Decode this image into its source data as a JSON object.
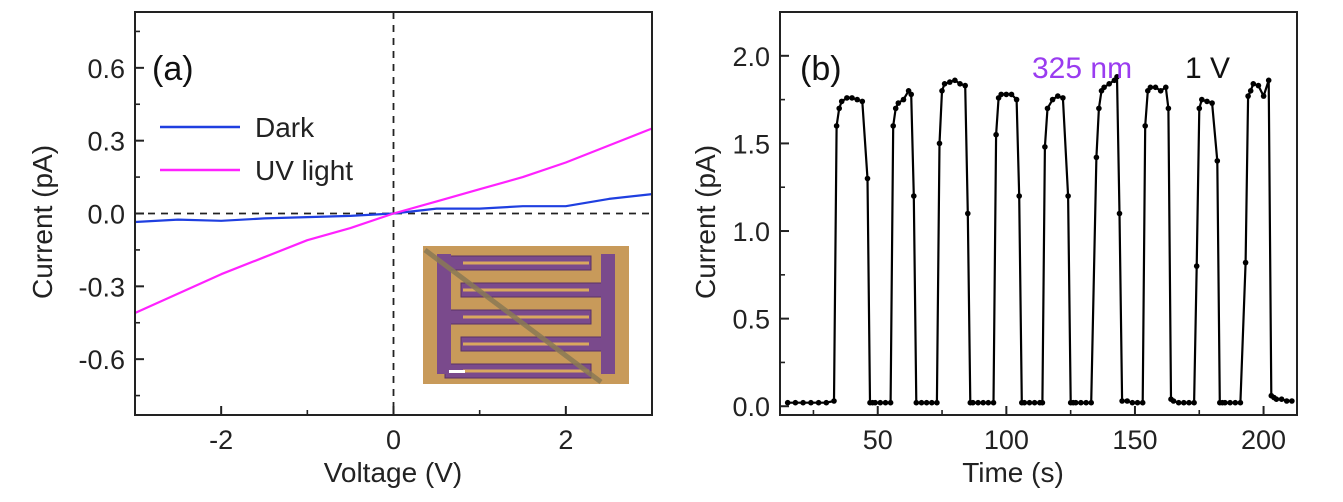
{
  "chart_data": [
    {
      "type": "line",
      "panel_label": "(a)",
      "xlabel": "Voltage (V)",
      "ylabel": "Current (pA)",
      "xlim": [
        -3,
        3
      ],
      "ylim": [
        -0.83,
        0.83
      ],
      "xticks": [
        -2,
        0,
        2
      ],
      "xtick_labels": [
        "-2",
        "0",
        "2"
      ],
      "yticks": [
        -0.6,
        -0.3,
        0.0,
        0.3,
        0.6
      ],
      "ytick_labels": [
        "-0.6",
        "-0.3",
        "0.0",
        "0.3",
        "0.6"
      ],
      "reference_lines": {
        "x": 0,
        "y": 0,
        "style": "dashed"
      },
      "legend": {
        "placement": "upper-left"
      },
      "grid": false,
      "inset": {
        "description_icon": "interdigitated-electrode-micrograph"
      },
      "series": [
        {
          "name": "Dark",
          "color": "#1f3fe0",
          "x": [
            -3,
            -2.5,
            -2,
            -1.5,
            -1,
            -0.5,
            0,
            0.5,
            1,
            1.5,
            2,
            2.5,
            3
          ],
          "y": [
            -0.035,
            -0.025,
            -0.03,
            -0.02,
            -0.015,
            -0.01,
            0.0,
            0.02,
            0.02,
            0.03,
            0.03,
            0.06,
            0.08
          ]
        },
        {
          "name": "UV light",
          "color": "#ff22ff",
          "x": [
            -3,
            -2.5,
            -2,
            -1.5,
            -1,
            -0.5,
            0,
            0.5,
            1,
            1.5,
            2,
            2.5,
            3
          ],
          "y": [
            -0.41,
            -0.33,
            -0.25,
            -0.18,
            -0.11,
            -0.06,
            0.0,
            0.05,
            0.1,
            0.15,
            0.21,
            0.28,
            0.35
          ]
        }
      ]
    },
    {
      "type": "line",
      "panel_label": "(b)",
      "xlabel": "Time (s)",
      "ylabel": "Current (pA)",
      "xlim": [
        12,
        213
      ],
      "ylim": [
        -0.05,
        2.25
      ],
      "xticks": [
        50,
        100,
        150,
        200
      ],
      "xtick_labels": [
        "50",
        "100",
        "150",
        "200"
      ],
      "yticks": [
        0.0,
        0.5,
        1.0,
        1.5,
        2.0
      ],
      "ytick_labels": [
        "0.0",
        "0.5",
        "1.0",
        "1.5",
        "2.0"
      ],
      "annotations": [
        {
          "text": "325 nm",
          "color": "#9a3cf0"
        },
        {
          "text": "1 V",
          "color": "#111111"
        }
      ],
      "grid": false,
      "series": [
        {
          "color": "#000000",
          "marker": "circle",
          "x": [
            15,
            18,
            21,
            24,
            27,
            30,
            33,
            34,
            35,
            36,
            38,
            40,
            42,
            44,
            46,
            47,
            48,
            49,
            51,
            53,
            55,
            56,
            57,
            58,
            60,
            62,
            63,
            64,
            65,
            67,
            69,
            71,
            73,
            74,
            75,
            76,
            78,
            80,
            82,
            84,
            85,
            86,
            87,
            89,
            91,
            93,
            95,
            96,
            97,
            98,
            100,
            102,
            104,
            105,
            106,
            107,
            109,
            111,
            113,
            114,
            115,
            116,
            118,
            120,
            122,
            124,
            125,
            126,
            127,
            129,
            131,
            133,
            135,
            136,
            137,
            138,
            140,
            142,
            143,
            144,
            145,
            147,
            149,
            151,
            153,
            154,
            155,
            156,
            158,
            160,
            162,
            163,
            164,
            165,
            167,
            169,
            171,
            173,
            174,
            175,
            176,
            178,
            180,
            182,
            183,
            184,
            185,
            187,
            189,
            191,
            193,
            194,
            195,
            196,
            198,
            200,
            202,
            203,
            204,
            205,
            207,
            209,
            211
          ],
          "y": [
            0.02,
            0.02,
            0.02,
            0.02,
            0.02,
            0.02,
            0.03,
            1.6,
            1.7,
            1.74,
            1.76,
            1.76,
            1.75,
            1.74,
            1.3,
            0.02,
            0.02,
            0.02,
            0.02,
            0.02,
            0.02,
            1.6,
            1.7,
            1.73,
            1.75,
            1.8,
            1.78,
            1.2,
            0.02,
            0.02,
            0.02,
            0.02,
            0.02,
            1.5,
            1.8,
            1.84,
            1.85,
            1.86,
            1.84,
            1.83,
            1.1,
            0.02,
            0.02,
            0.02,
            0.02,
            0.02,
            0.02,
            1.55,
            1.76,
            1.78,
            1.78,
            1.78,
            1.75,
            1.2,
            0.02,
            0.02,
            0.02,
            0.02,
            0.02,
            0.02,
            1.48,
            1.7,
            1.75,
            1.77,
            1.76,
            1.2,
            0.02,
            0.02,
            0.02,
            0.02,
            0.02,
            0.02,
            1.42,
            1.7,
            1.8,
            1.82,
            1.84,
            1.86,
            1.88,
            1.1,
            0.03,
            0.03,
            0.02,
            0.02,
            0.02,
            1.6,
            1.8,
            1.82,
            1.82,
            1.8,
            1.82,
            1.7,
            0.04,
            0.03,
            0.02,
            0.02,
            0.02,
            0.02,
            0.8,
            1.7,
            1.75,
            1.74,
            1.73,
            1.4,
            0.02,
            0.02,
            0.02,
            0.02,
            0.02,
            0.02,
            0.82,
            1.77,
            1.8,
            1.84,
            1.83,
            1.77,
            1.86,
            0.06,
            0.05,
            0.04,
            0.04,
            0.03,
            0.03
          ]
        }
      ]
    }
  ]
}
